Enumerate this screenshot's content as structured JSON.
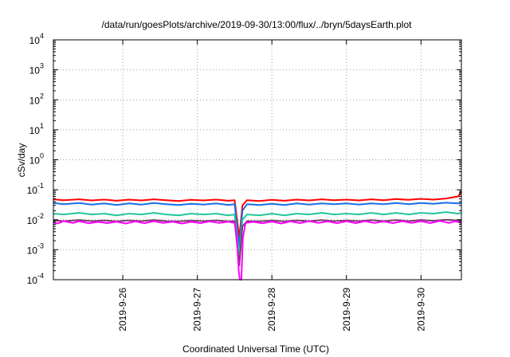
{
  "chart_data": {
    "type": "line",
    "title": "/data/run/goesPlots/archive/2019-09-30/13:00/flux/../bryn/5daysEarth.plot",
    "xlabel": "Coordinated Universal Time (UTC)",
    "ylabel": "cSv/day",
    "y_scale": "log",
    "ylim": [
      0.0001,
      10000
    ],
    "xlim": [
      "2019-09-25T01:40",
      "2019-09-30T13:00"
    ],
    "grid": true,
    "y_ticks": [
      {
        "base": "10",
        "exp": "-4",
        "value": 0.0001
      },
      {
        "base": "10",
        "exp": "-3",
        "value": 0.001
      },
      {
        "base": "10",
        "exp": "-2",
        "value": 0.01
      },
      {
        "base": "10",
        "exp": "-1",
        "value": 0.1
      },
      {
        "base": "10",
        "exp": "0",
        "value": 1
      },
      {
        "base": "10",
        "exp": "1",
        "value": 10
      },
      {
        "base": "10",
        "exp": "2",
        "value": 100
      },
      {
        "base": "10",
        "exp": "3",
        "value": 1000
      },
      {
        "base": "10",
        "exp": "4",
        "value": 10000
      }
    ],
    "x_ticks": [
      {
        "label": "2019-9-26",
        "value": "2019-09-26T00:00"
      },
      {
        "label": "2019-9-27",
        "value": "2019-09-27T00:00"
      },
      {
        "label": "2019-9-28",
        "value": "2019-09-28T00:00"
      },
      {
        "label": "2019-9-29",
        "value": "2019-09-29T00:00"
      },
      {
        "label": "2019-9-30",
        "value": "2019-09-30T00:00"
      }
    ],
    "series": [
      {
        "color": "#ff0000",
        "points": [
          [
            "2019-09-25T01:40",
            0.048
          ],
          [
            "2019-09-25T05:00",
            0.045
          ],
          [
            "2019-09-25T10:00",
            0.048
          ],
          [
            "2019-09-25T14:00",
            0.044
          ],
          [
            "2019-09-25T18:00",
            0.047
          ],
          [
            "2019-09-25T22:00",
            0.043
          ],
          [
            "2019-09-26T02:00",
            0.047
          ],
          [
            "2019-09-26T06:00",
            0.044
          ],
          [
            "2019-09-26T10:00",
            0.048
          ],
          [
            "2019-09-26T14:00",
            0.045
          ],
          [
            "2019-09-26T18:00",
            0.042
          ],
          [
            "2019-09-26T22:00",
            0.046
          ],
          [
            "2019-09-27T02:00",
            0.044
          ],
          [
            "2019-09-27T06:00",
            0.047
          ],
          [
            "2019-09-27T10:00",
            0.043
          ],
          [
            "2019-09-27T12:00",
            0.045
          ],
          [
            "2019-09-27T13:30",
            0.0025
          ],
          [
            "2019-09-27T14:30",
            0.03
          ],
          [
            "2019-09-27T16:00",
            0.045
          ],
          [
            "2019-09-27T20:00",
            0.042
          ],
          [
            "2019-09-28T00:00",
            0.046
          ],
          [
            "2019-09-28T04:00",
            0.043
          ],
          [
            "2019-09-28T08:00",
            0.047
          ],
          [
            "2019-09-28T12:00",
            0.044
          ],
          [
            "2019-09-28T16:00",
            0.048
          ],
          [
            "2019-09-28T20:00",
            0.045
          ],
          [
            "2019-09-29T00:00",
            0.047
          ],
          [
            "2019-09-29T04:00",
            0.044
          ],
          [
            "2019-09-29T08:00",
            0.048
          ],
          [
            "2019-09-29T12:00",
            0.045
          ],
          [
            "2019-09-29T16:00",
            0.049
          ],
          [
            "2019-09-29T20:00",
            0.046
          ],
          [
            "2019-09-30T00:00",
            0.05
          ],
          [
            "2019-09-30T04:00",
            0.047
          ],
          [
            "2019-09-30T08:00",
            0.051
          ],
          [
            "2019-09-30T12:00",
            0.06
          ],
          [
            "2019-09-30T13:00",
            0.09
          ]
        ]
      },
      {
        "color": "#1a6fe6",
        "points": [
          [
            "2019-09-25T01:40",
            0.036
          ],
          [
            "2019-09-25T05:00",
            0.033
          ],
          [
            "2019-09-25T10:00",
            0.036
          ],
          [
            "2019-09-25T14:00",
            0.032
          ],
          [
            "2019-09-25T18:00",
            0.035
          ],
          [
            "2019-09-25T22:00",
            0.031
          ],
          [
            "2019-09-26T02:00",
            0.035
          ],
          [
            "2019-09-26T06:00",
            0.032
          ],
          [
            "2019-09-26T10:00",
            0.036
          ],
          [
            "2019-09-26T14:00",
            0.033
          ],
          [
            "2019-09-26T18:00",
            0.031
          ],
          [
            "2019-09-26T22:00",
            0.034
          ],
          [
            "2019-09-27T02:00",
            0.032
          ],
          [
            "2019-09-27T06:00",
            0.035
          ],
          [
            "2019-09-27T10:00",
            0.031
          ],
          [
            "2019-09-27T12:00",
            0.033
          ],
          [
            "2019-09-27T13:30",
            0.0012
          ],
          [
            "2019-09-27T14:30",
            0.02
          ],
          [
            "2019-09-27T16:00",
            0.033
          ],
          [
            "2019-09-27T20:00",
            0.031
          ],
          [
            "2019-09-28T00:00",
            0.034
          ],
          [
            "2019-09-28T04:00",
            0.031
          ],
          [
            "2019-09-28T08:00",
            0.035
          ],
          [
            "2019-09-28T12:00",
            0.032
          ],
          [
            "2019-09-28T16:00",
            0.035
          ],
          [
            "2019-09-28T20:00",
            0.033
          ],
          [
            "2019-09-29T00:00",
            0.035
          ],
          [
            "2019-09-29T04:00",
            0.032
          ],
          [
            "2019-09-29T08:00",
            0.035
          ],
          [
            "2019-09-29T12:00",
            0.033
          ],
          [
            "2019-09-29T16:00",
            0.036
          ],
          [
            "2019-09-29T20:00",
            0.033
          ],
          [
            "2019-09-30T00:00",
            0.036
          ],
          [
            "2019-09-30T04:00",
            0.034
          ],
          [
            "2019-09-30T08:00",
            0.037
          ],
          [
            "2019-09-30T12:00",
            0.035
          ],
          [
            "2019-09-30T13:00",
            0.036
          ]
        ]
      },
      {
        "color": "#22c4a0",
        "points": [
          [
            "2019-09-25T01:40",
            0.016
          ],
          [
            "2019-09-25T05:00",
            0.015
          ],
          [
            "2019-09-25T10:00",
            0.017
          ],
          [
            "2019-09-25T14:00",
            0.015
          ],
          [
            "2019-09-25T18:00",
            0.016
          ],
          [
            "2019-09-25T22:00",
            0.014
          ],
          [
            "2019-09-26T02:00",
            0.016
          ],
          [
            "2019-09-26T06:00",
            0.015
          ],
          [
            "2019-09-26T10:00",
            0.017
          ],
          [
            "2019-09-26T14:00",
            0.015
          ],
          [
            "2019-09-26T18:00",
            0.014
          ],
          [
            "2019-09-26T22:00",
            0.016
          ],
          [
            "2019-09-27T02:00",
            0.015
          ],
          [
            "2019-09-27T06:00",
            0.016
          ],
          [
            "2019-09-27T10:00",
            0.014
          ],
          [
            "2019-09-27T12:00",
            0.015
          ],
          [
            "2019-09-27T13:30",
            0.0006
          ],
          [
            "2019-09-27T14:30",
            0.01
          ],
          [
            "2019-09-27T16:00",
            0.015
          ],
          [
            "2019-09-27T20:00",
            0.014
          ],
          [
            "2019-09-28T00:00",
            0.016
          ],
          [
            "2019-09-28T04:00",
            0.014
          ],
          [
            "2019-09-28T08:00",
            0.016
          ],
          [
            "2019-09-28T12:00",
            0.015
          ],
          [
            "2019-09-28T16:00",
            0.017
          ],
          [
            "2019-09-28T20:00",
            0.015
          ],
          [
            "2019-09-29T00:00",
            0.016
          ],
          [
            "2019-09-29T04:00",
            0.015
          ],
          [
            "2019-09-29T08:00",
            0.017
          ],
          [
            "2019-09-29T12:00",
            0.015
          ],
          [
            "2019-09-29T16:00",
            0.017
          ],
          [
            "2019-09-29T20:00",
            0.015
          ],
          [
            "2019-09-30T00:00",
            0.017
          ],
          [
            "2019-09-30T04:00",
            0.016
          ],
          [
            "2019-09-30T08:00",
            0.018
          ],
          [
            "2019-09-30T12:00",
            0.016
          ],
          [
            "2019-09-30T13:00",
            0.017
          ]
        ]
      },
      {
        "color": "#7a3c6e",
        "points": [
          [
            "2019-09-25T01:40",
            0.0095
          ],
          [
            "2019-09-25T05:00",
            0.009
          ],
          [
            "2019-09-25T10:00",
            0.0098
          ],
          [
            "2019-09-25T14:00",
            0.009
          ],
          [
            "2019-09-25T18:00",
            0.0095
          ],
          [
            "2019-09-25T22:00",
            0.0088
          ],
          [
            "2019-09-26T02:00",
            0.0095
          ],
          [
            "2019-09-26T06:00",
            0.009
          ],
          [
            "2019-09-26T10:00",
            0.0098
          ],
          [
            "2019-09-26T14:00",
            0.009
          ],
          [
            "2019-09-26T18:00",
            0.0088
          ],
          [
            "2019-09-26T22:00",
            0.0094
          ],
          [
            "2019-09-27T02:00",
            0.009
          ],
          [
            "2019-09-27T06:00",
            0.0095
          ],
          [
            "2019-09-27T10:00",
            0.0088
          ],
          [
            "2019-09-27T12:00",
            0.009
          ],
          [
            "2019-09-27T13:30",
            0.0003
          ],
          [
            "2019-09-27T14:30",
            0.006
          ],
          [
            "2019-09-27T16:00",
            0.009
          ],
          [
            "2019-09-27T20:00",
            0.0088
          ],
          [
            "2019-09-28T00:00",
            0.0094
          ],
          [
            "2019-09-28T04:00",
            0.0088
          ],
          [
            "2019-09-28T08:00",
            0.0095
          ],
          [
            "2019-09-28T12:00",
            0.009
          ],
          [
            "2019-09-28T16:00",
            0.0097
          ],
          [
            "2019-09-28T20:00",
            0.009
          ],
          [
            "2019-09-29T00:00",
            0.0095
          ],
          [
            "2019-09-29T04:00",
            0.009
          ],
          [
            "2019-09-29T08:00",
            0.0097
          ],
          [
            "2019-09-29T12:00",
            0.009
          ],
          [
            "2019-09-29T16:00",
            0.0098
          ],
          [
            "2019-09-29T20:00",
            0.009
          ],
          [
            "2019-09-30T00:00",
            0.0098
          ],
          [
            "2019-09-30T04:00",
            0.0092
          ],
          [
            "2019-09-30T08:00",
            0.01
          ],
          [
            "2019-09-30T12:00",
            0.0095
          ],
          [
            "2019-09-30T13:00",
            0.0098
          ]
        ]
      },
      {
        "color": "#ff00ff",
        "points": [
          [
            "2019-09-25T01:40",
            0.0082
          ],
          [
            "2019-09-25T03:00",
            0.0075
          ],
          [
            "2019-09-25T05:00",
            0.009
          ],
          [
            "2019-09-25T08:00",
            0.0078
          ],
          [
            "2019-09-25T10:00",
            0.009
          ],
          [
            "2019-09-25T13:00",
            0.0076
          ],
          [
            "2019-09-25T16:00",
            0.0085
          ],
          [
            "2019-09-25T19:00",
            0.0077
          ],
          [
            "2019-09-25T22:00",
            0.0086
          ],
          [
            "2019-09-26T01:00",
            0.0075
          ],
          [
            "2019-09-26T04:00",
            0.0088
          ],
          [
            "2019-09-26T07:00",
            0.0076
          ],
          [
            "2019-09-26T10:00",
            0.009
          ],
          [
            "2019-09-26T13:00",
            0.0078
          ],
          [
            "2019-09-26T16:00",
            0.0086
          ],
          [
            "2019-09-26T19:00",
            0.0075
          ],
          [
            "2019-09-26T22:00",
            0.0085
          ],
          [
            "2019-09-27T01:00",
            0.0077
          ],
          [
            "2019-09-27T04:00",
            0.0088
          ],
          [
            "2019-09-27T07:00",
            0.0078
          ],
          [
            "2019-09-27T10:00",
            0.0086
          ],
          [
            "2019-09-27T12:00",
            0.0078
          ],
          [
            "2019-09-27T12:40",
            0.003
          ],
          [
            "2019-09-27T13:20",
            0.0002
          ],
          [
            "2019-09-27T13:40",
            0.0001
          ],
          [
            "2019-09-27T14:10",
            0.0001
          ],
          [
            "2019-09-27T14:40",
            0.0025
          ],
          [
            "2019-09-27T15:30",
            0.0078
          ],
          [
            "2019-09-27T18:00",
            0.0085
          ],
          [
            "2019-09-27T21:00",
            0.0076
          ],
          [
            "2019-09-28T00:00",
            0.0087
          ],
          [
            "2019-09-28T03:00",
            0.0075
          ],
          [
            "2019-09-28T06:00",
            0.0088
          ],
          [
            "2019-09-28T09:00",
            0.0077
          ],
          [
            "2019-09-28T12:00",
            0.009
          ],
          [
            "2019-09-28T15:00",
            0.0078
          ],
          [
            "2019-09-28T18:00",
            0.0088
          ],
          [
            "2019-09-28T21:00",
            0.0076
          ],
          [
            "2019-09-29T00:00",
            0.0089
          ],
          [
            "2019-09-29T03:00",
            0.0077
          ],
          [
            "2019-09-29T06:00",
            0.009
          ],
          [
            "2019-09-29T09:00",
            0.0078
          ],
          [
            "2019-09-29T12:00",
            0.0088
          ],
          [
            "2019-09-29T15:00",
            0.0077
          ],
          [
            "2019-09-29T18:00",
            0.009
          ],
          [
            "2019-09-29T21:00",
            0.0078
          ],
          [
            "2019-09-30T00:00",
            0.009
          ],
          [
            "2019-09-30T03:00",
            0.0077
          ],
          [
            "2019-09-30T06:00",
            0.0092
          ],
          [
            "2019-09-30T09:00",
            0.0078
          ],
          [
            "2019-09-30T11:00",
            0.009
          ],
          [
            "2019-09-30T13:00",
            0.0078
          ]
        ]
      }
    ]
  }
}
